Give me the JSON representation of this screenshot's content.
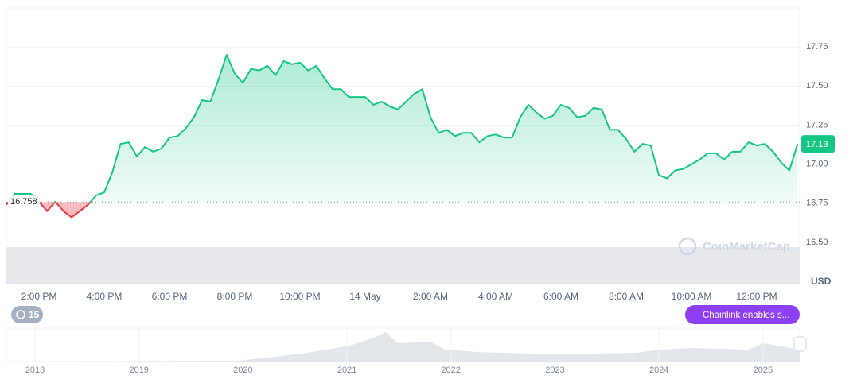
{
  "chart_data": {
    "type": "line",
    "categories": [
      null,
      null,
      null,
      null,
      "2:00 PM",
      null,
      null,
      null,
      null,
      null,
      null,
      null,
      "4:00 PM",
      null,
      null,
      null,
      null,
      null,
      null,
      null,
      "6:00 PM",
      null,
      null,
      null,
      null,
      null,
      null,
      null,
      "8:00 PM",
      null,
      null,
      null,
      null,
      null,
      null,
      null,
      "10:00 PM",
      null,
      null,
      null,
      null,
      null,
      null,
      null,
      "14 May",
      null,
      null,
      null,
      null,
      null,
      null,
      null,
      "2:00 AM",
      null,
      null,
      null,
      null,
      null,
      null,
      null,
      "4:00 AM",
      null,
      null,
      null,
      null,
      null,
      null,
      null,
      "6:00 AM",
      null,
      null,
      null,
      null,
      null,
      null,
      null,
      "8:00 AM",
      null,
      null,
      null,
      null,
      null,
      null,
      null,
      "10:00 AM",
      null,
      null,
      null,
      null,
      null,
      null,
      null,
      "12:00 PM",
      null,
      null,
      null,
      null,
      null
    ],
    "series": [
      {
        "color": "#16c784",
        "down_color": "#ea3943",
        "values": [
          16.74,
          16.81,
          16.81,
          16.81,
          16.76,
          16.7,
          16.76,
          16.7,
          16.66,
          16.7,
          16.74,
          16.8,
          16.82,
          16.95,
          17.13,
          17.14,
          17.05,
          17.11,
          17.08,
          17.1,
          17.17,
          17.18,
          17.23,
          17.3,
          17.41,
          17.4,
          17.54,
          17.7,
          17.58,
          17.52,
          17.61,
          17.6,
          17.63,
          17.57,
          17.66,
          17.64,
          17.65,
          17.6,
          17.63,
          17.55,
          17.48,
          17.48,
          17.43,
          17.43,
          17.43,
          17.38,
          17.4,
          17.37,
          17.35,
          17.4,
          17.45,
          17.48,
          17.3,
          17.2,
          17.22,
          17.18,
          17.2,
          17.2,
          17.14,
          17.18,
          17.19,
          17.17,
          17.17,
          17.3,
          17.38,
          17.33,
          17.29,
          17.31,
          17.38,
          17.36,
          17.3,
          17.31,
          17.36,
          17.35,
          17.22,
          17.22,
          17.16,
          17.08,
          17.13,
          17.12,
          16.93,
          16.91,
          16.96,
          16.97,
          17.0,
          17.03,
          17.07,
          17.07,
          17.03,
          17.08,
          17.08,
          17.14,
          17.12,
          17.13,
          17.08,
          17.01,
          16.96,
          17.13
        ]
      }
    ],
    "baseline": 16.758,
    "last_price": 17.13,
    "currency": "USD",
    "ylim": [
      16.5,
      18.0
    ],
    "yticks": [
      {
        "value": 16.5,
        "label": "16.50"
      },
      16.75,
      {
        "value": 17.0,
        "label": "17.00"
      },
      17.25,
      {
        "value": 17.5,
        "label": "17.50"
      },
      17.75
    ],
    "grid": true,
    "watermark": "CoinMarketCap",
    "history_badge": "15",
    "news_badge": "Chainlink enables s...",
    "navigator_labels": [
      "2018",
      "2019",
      "2020",
      "2021",
      "2022",
      "2023",
      "2024",
      "2025"
    ]
  }
}
